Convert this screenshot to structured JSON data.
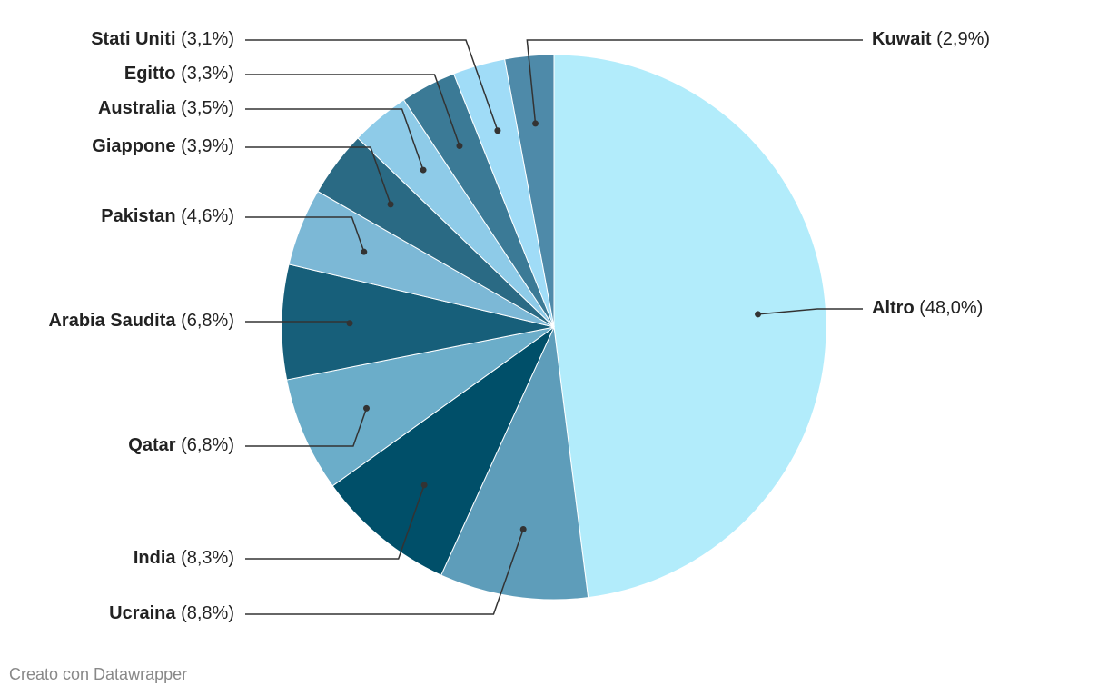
{
  "chart_data": {
    "type": "pie",
    "categories": [
      "Altro",
      "Ucraina",
      "India",
      "Qatar",
      "Arabia Saudita",
      "Pakistan",
      "Giappone",
      "Australia",
      "Egitto",
      "Stati Uniti",
      "Kuwait"
    ],
    "values": [
      48.0,
      8.8,
      8.3,
      6.8,
      6.8,
      4.6,
      3.9,
      3.5,
      3.3,
      3.1,
      2.9
    ],
    "value_labels": [
      "(48,0%)",
      "(8,8%)",
      "(8,3%)",
      "(6,8%)",
      "(6,8%)",
      "(4,6%)",
      "(3,9%)",
      "(3,5%)",
      "(3,3%)",
      "(3,1%)",
      "(2,9%)"
    ],
    "colors": [
      "#b2ecfb",
      "#5e9dba",
      "#004f69",
      "#6badc9",
      "#175f7a",
      "#7cb8d6",
      "#2a6a84",
      "#8ecbe8",
      "#3b7a96",
      "#a0dcf7",
      "#4e8aa9"
    ]
  },
  "credit": "Creato con Datawrapper"
}
